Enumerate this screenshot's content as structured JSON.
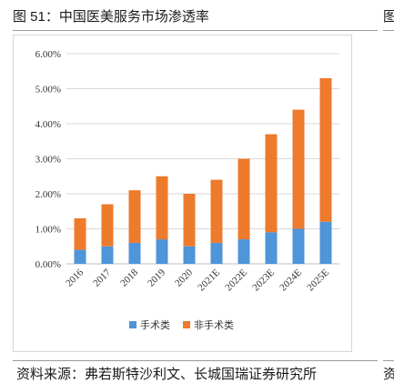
{
  "figure": {
    "title": "图 51：中国医美服务市场渗透率",
    "title_right_fragment": "图",
    "source": "资料来源：弗若斯特沙利文、长城国瑞证券研究所",
    "source_right_fragment": "资"
  },
  "colors": {
    "surgical": "#4e95d9",
    "non_surgical": "#ee7a2c",
    "grid": "#d9d9d9",
    "axis": "#bfbfbf"
  },
  "chart_data": {
    "type": "bar",
    "stacked": true,
    "title": "",
    "xlabel": "",
    "ylabel": "",
    "categories": [
      "2016",
      "2017",
      "2018",
      "2019",
      "2020",
      "2021E",
      "2022E",
      "2023E",
      "2024E",
      "2025E"
    ],
    "series": [
      {
        "name": "手术类",
        "values": [
          0.4,
          0.5,
          0.6,
          0.7,
          0.5,
          0.6,
          0.7,
          0.9,
          1.0,
          1.2
        ]
      },
      {
        "name": "非手术类",
        "values": [
          0.9,
          1.2,
          1.5,
          1.8,
          1.5,
          1.8,
          2.3,
          2.8,
          3.4,
          4.1
        ]
      }
    ],
    "ylim": [
      0,
      6
    ],
    "y_ticks": [
      "0.00%",
      "1.00%",
      "2.00%",
      "3.00%",
      "4.00%",
      "5.00%",
      "6.00%"
    ],
    "grid": true,
    "legend_position": "bottom"
  }
}
